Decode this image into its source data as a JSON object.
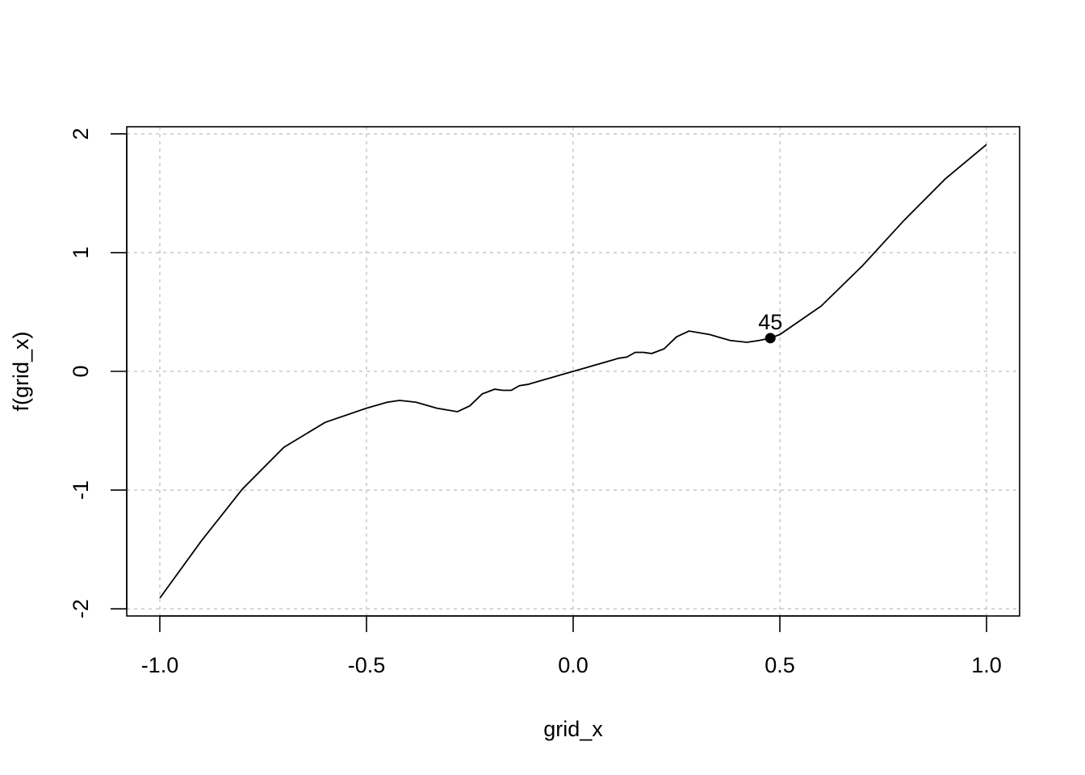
{
  "chart_data": {
    "type": "line",
    "title": "",
    "xlabel": "grid_x",
    "ylabel": "f(grid_x)",
    "xlim": [
      -1.08,
      1.08
    ],
    "ylim": [
      -2.06,
      2.06
    ],
    "x_ticks": [
      -1.0,
      -0.5,
      0.0,
      0.5,
      1.0
    ],
    "x_tick_labels": [
      "-1.0",
      "-0.5",
      "0.0",
      "0.5",
      "1.0"
    ],
    "y_ticks": [
      -2,
      -1,
      0,
      1,
      2
    ],
    "y_tick_labels": [
      "-2",
      "-1",
      "0",
      "1",
      "2"
    ],
    "grid": true,
    "legend": "none",
    "series": [
      {
        "x": [
          -1.0,
          -0.9,
          -0.8,
          -0.7,
          -0.6,
          -0.5,
          -0.45,
          -0.42,
          -0.38,
          -0.33,
          -0.28,
          -0.25,
          -0.22,
          -0.19,
          -0.17,
          -0.15,
          -0.13,
          -0.11,
          -0.09,
          -0.07,
          -0.05,
          -0.03,
          0.0,
          0.03,
          0.05,
          0.07,
          0.09,
          0.11,
          0.13,
          0.15,
          0.17,
          0.19,
          0.22,
          0.25,
          0.28,
          0.33,
          0.38,
          0.42,
          0.45,
          0.477,
          0.5,
          0.6,
          0.7,
          0.8,
          0.9,
          1.0
        ],
        "y": [
          -1.91,
          -1.43,
          -0.99,
          -0.64,
          -0.43,
          -0.31,
          -0.26,
          -0.245,
          -0.26,
          -0.31,
          -0.34,
          -0.29,
          -0.19,
          -0.15,
          -0.16,
          -0.16,
          -0.12,
          -0.11,
          -0.09,
          -0.07,
          -0.05,
          -0.03,
          0.0,
          0.03,
          0.05,
          0.07,
          0.09,
          0.11,
          0.12,
          0.16,
          0.16,
          0.15,
          0.19,
          0.29,
          0.34,
          0.31,
          0.26,
          0.245,
          0.26,
          0.28,
          0.31,
          0.55,
          0.89,
          1.27,
          1.62,
          1.91
        ]
      }
    ],
    "highlight_point": {
      "x": 0.477,
      "y": 0.28,
      "label": "45"
    }
  }
}
